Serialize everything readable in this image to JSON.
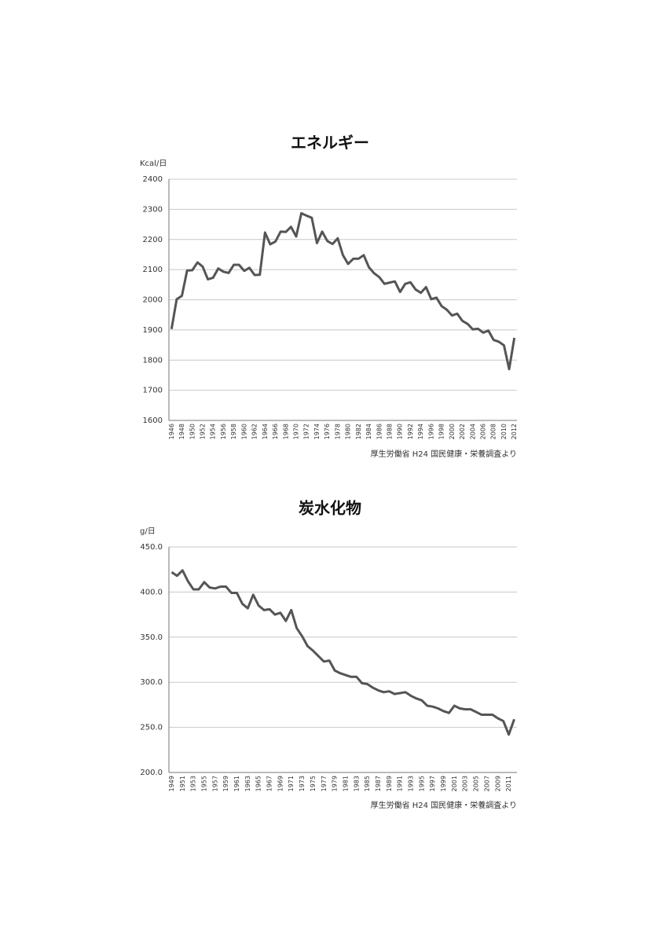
{
  "chart_data": [
    {
      "type": "line",
      "title": "エネルギー",
      "y_label": "Kcal/日",
      "source": "厚生労働省 H24 国民健康・栄養調査より",
      "categories": [
        "1946",
        null,
        "1948",
        null,
        "1950",
        null,
        "1952",
        null,
        "1954",
        null,
        "1956",
        null,
        "1958",
        null,
        "1960",
        null,
        "1962",
        null,
        "1964",
        null,
        "1966",
        null,
        "1968",
        null,
        "1970",
        null,
        "1972",
        null,
        "1974",
        null,
        "1976",
        null,
        "1978",
        null,
        "1980",
        null,
        "1982",
        null,
        "1984",
        null,
        "1986",
        null,
        "1988",
        null,
        "1990",
        null,
        "1992",
        null,
        "1994",
        null,
        "1996",
        null,
        "1998",
        null,
        "2000",
        null,
        "2002",
        null,
        "2004",
        null,
        "2006",
        null,
        "2008",
        null,
        "2010",
        null,
        "2012"
      ],
      "series": [
        {
          "name": "エネルギー",
          "color": "#555555",
          "values": [
            1903,
            2002,
            2013,
            2097,
            2098,
            2124,
            2110,
            2068,
            2073,
            2104,
            2093,
            2089,
            2116,
            2116,
            2096,
            2106,
            2082,
            2083,
            2223,
            2184,
            2193,
            2226,
            2225,
            2242,
            2210,
            2287,
            2279,
            2272,
            2188,
            2226,
            2195,
            2185,
            2204,
            2148,
            2119,
            2136,
            2136,
            2148,
            2108,
            2088,
            2075,
            2053,
            2057,
            2061,
            2026,
            2053,
            2058,
            2034,
            2023,
            2042,
            2002,
            2007,
            1979,
            1967,
            1948,
            1954,
            1930,
            1920,
            1902,
            1904,
            1891,
            1898,
            1867,
            1861,
            1849,
            1770,
            1874
          ]
        }
      ],
      "ylim": [
        1600,
        2400
      ],
      "yticks": [
        1600,
        1700,
        1800,
        1900,
        2000,
        2100,
        2200,
        2300,
        2400
      ],
      "grid": true
    },
    {
      "type": "line",
      "title": "炭水化物",
      "y_label": "g/日",
      "source": "厚生労働省 H24 国民健康・栄養調査より",
      "categories": [
        "1949",
        null,
        "1951",
        null,
        "1953",
        null,
        "1955",
        null,
        "1957",
        null,
        "1959",
        null,
        "1961",
        null,
        "1963",
        null,
        "1965",
        null,
        "1967",
        null,
        "1969",
        null,
        "1971",
        null,
        "1973",
        null,
        "1975",
        null,
        "1977",
        null,
        "1979",
        null,
        "1981",
        null,
        "1983",
        null,
        "1985",
        null,
        "1987",
        null,
        "1989",
        null,
        "1991",
        null,
        "1993",
        null,
        "1995",
        null,
        "1997",
        null,
        "1999",
        null,
        "2001",
        null,
        "2003",
        null,
        "2005",
        null,
        "2007",
        null,
        "2009",
        null,
        "2011",
        null
      ],
      "series": [
        {
          "name": "炭水化物",
          "color": "#555555",
          "values": [
            422,
            418,
            424,
            412,
            403,
            403,
            411,
            405,
            404,
            406,
            406,
            399,
            399,
            387,
            382,
            397,
            385,
            380,
            381,
            375,
            377,
            368,
            380,
            360,
            351,
            340,
            335,
            329,
            323,
            324,
            313,
            310,
            308,
            306,
            306,
            299,
            298,
            294,
            291,
            289,
            290,
            287,
            288,
            289,
            285,
            282,
            280,
            274,
            273,
            271,
            268,
            266,
            274,
            271,
            270,
            270,
            267,
            264,
            264,
            264,
            260,
            257,
            242,
            259
          ]
        }
      ],
      "ylim": [
        200,
        450
      ],
      "yticks": [
        {
          "value": 200,
          "label": "200.0"
        },
        {
          "value": 250,
          "label": "250.0"
        },
        {
          "value": 300,
          "label": "300.0"
        },
        {
          "value": 350,
          "label": "350.0"
        },
        {
          "value": 400,
          "label": "400.0"
        },
        {
          "value": 450,
          "label": "450.0"
        }
      ],
      "grid": true
    }
  ]
}
